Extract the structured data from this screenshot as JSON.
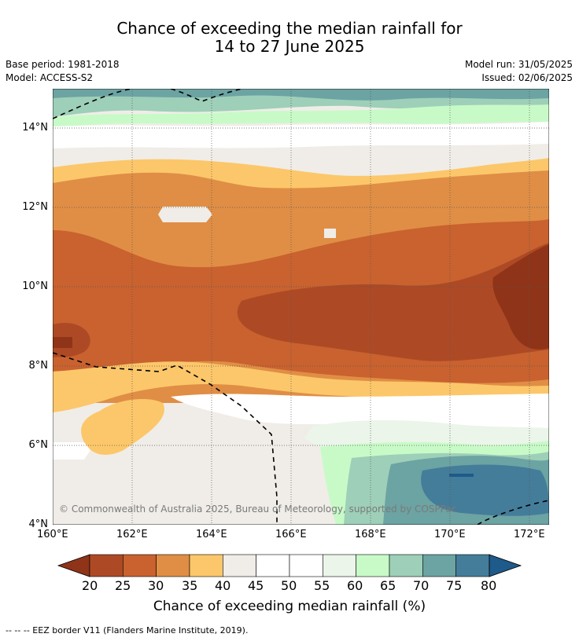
{
  "title": {
    "line1": "Chance of exceeding the median rainfall for",
    "line2": "14 to 27 June 2025"
  },
  "meta": {
    "base_period": "Base period: 1981-2018",
    "model": "Model: ACCESS-S2",
    "model_run": "Model run: 31/05/2025",
    "issued": "Issued: 02/06/2025"
  },
  "map": {
    "lat_labels": [
      "14°N",
      "12°N",
      "10°N",
      "8°N",
      "6°N",
      "4°N"
    ],
    "lon_labels": [
      "160°E",
      "162°E",
      "164°E",
      "166°E",
      "168°E",
      "170°E",
      "172°E"
    ],
    "copyright": "© Commonwealth of Australia 2025, Bureau of Meteorology, supported by COSPPac"
  },
  "colorbar": {
    "ticks": [
      "20",
      "25",
      "30",
      "35",
      "40",
      "45",
      "50",
      "55",
      "60",
      "65",
      "70",
      "75",
      "80"
    ],
    "colors": [
      "#8f3418",
      "#ad4a25",
      "#c9622f",
      "#e08e45",
      "#fcc76a",
      "#f0ede8",
      "#ffffff",
      "#ffffff",
      "#ebf5e9",
      "#c8fac8",
      "#9ecfb8",
      "#6ca3a3",
      "#447d9a",
      "#1e5a8a"
    ],
    "label": "Chance of exceeding median rainfall (%)"
  },
  "footer": {
    "eez": "--  --  -- EEZ border V11 (Flanders Marine Institute, 2019)."
  }
}
